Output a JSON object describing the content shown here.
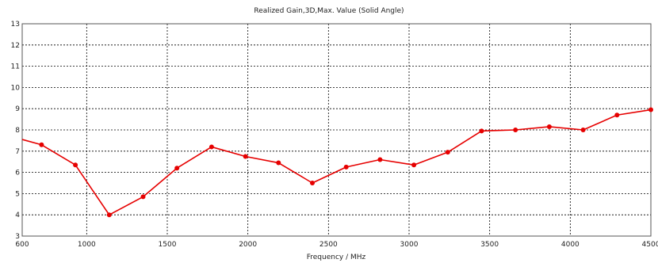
{
  "chart_data": {
    "type": "line",
    "title": "",
    "subtitle": "Realized Gain,3D,Max. Value (Solid Angle)",
    "xlabel": "Frequency / MHz",
    "ylabel": "",
    "xlim": [
      600,
      4500
    ],
    "ylim": [
      3,
      13
    ],
    "xticks": [
      600,
      1000,
      1500,
      2000,
      2500,
      3000,
      3500,
      4000,
      4500
    ],
    "yticks": [
      3,
      4,
      5,
      6,
      7,
      8,
      9,
      10,
      11,
      12,
      13
    ],
    "grid": true,
    "series": [
      {
        "color": "#e60000",
        "x": [
          600,
          720,
          930,
          1140,
          1350,
          1560,
          1775,
          1985,
          2190,
          2400,
          2610,
          2820,
          3030,
          3240,
          3450,
          3660,
          3870,
          4080,
          4290,
          4500
        ],
        "y": [
          7.55,
          7.3,
          6.35,
          4.0,
          4.85,
          6.2,
          7.2,
          6.75,
          6.45,
          5.5,
          6.25,
          6.6,
          6.35,
          6.95,
          7.95,
          8.0,
          8.15,
          8.0,
          8.7,
          8.95
        ],
        "markers": [
          false,
          true,
          true,
          true,
          true,
          true,
          true,
          true,
          true,
          true,
          true,
          true,
          true,
          true,
          true,
          true,
          true,
          true,
          true,
          true
        ]
      }
    ]
  }
}
